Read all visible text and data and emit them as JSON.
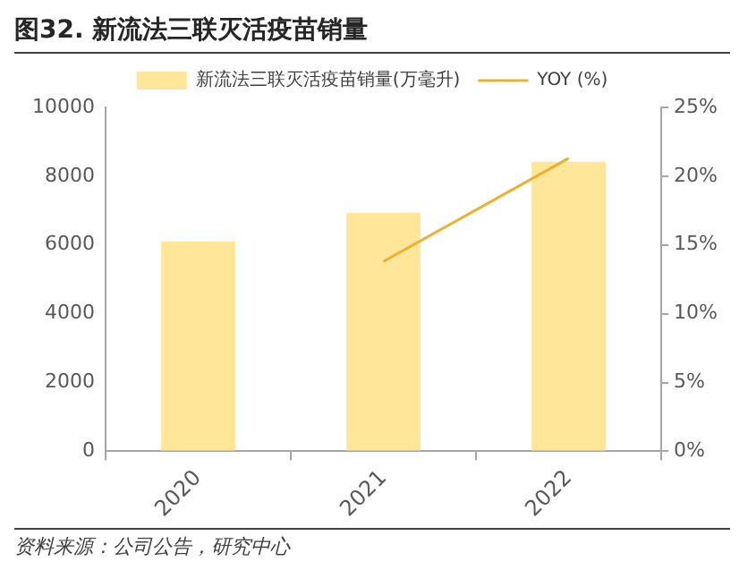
{
  "chart_data": {
    "type": "bar",
    "title": "图32. 新流法三联灭活疫苗销量",
    "categories": [
      "2020",
      "2021",
      "2022"
    ],
    "series": [
      {
        "name": "新流法三联灭活疫苗销量(万毫升)",
        "color": "#ffe699",
        "values": [
          6100,
          6940,
          8420
        ]
      },
      {
        "name": "YOY (%)",
        "type": "line",
        "axis": "y2",
        "color": "#e9b330",
        "values": [
          null,
          13.8,
          21.3
        ]
      }
    ],
    "ylim": [
      0,
      10000
    ],
    "yticks": [
      0,
      2000,
      4000,
      6000,
      8000,
      10000
    ],
    "y2lim": [
      0,
      25
    ],
    "y2ticks": [
      {
        "value": 0,
        "label": "0%"
      },
      {
        "value": 5,
        "label": "5%"
      },
      {
        "value": 10,
        "label": "10%"
      },
      {
        "value": 15,
        "label": "15%"
      },
      {
        "value": 20,
        "label": "20%"
      },
      {
        "value": 25,
        "label": "25%"
      }
    ],
    "grid": false,
    "legend": "top",
    "marker": "none",
    "line_style": "solid",
    "annotations": [
      "资料来源：公司公告，研究中心"
    ]
  }
}
